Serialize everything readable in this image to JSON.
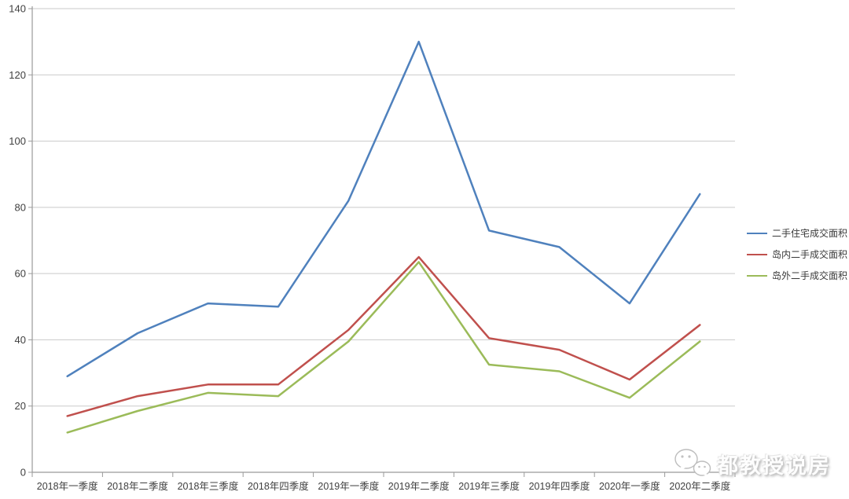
{
  "chart_data": {
    "type": "line",
    "title": "",
    "xlabel": "",
    "ylabel": "",
    "categories": [
      "2018年一季度",
      "2018年二季度",
      "2018年三季度",
      "2018年四季度",
      "2019年一季度",
      "2019年二季度",
      "2019年三季度",
      "2019年四季度",
      "2020年一季度",
      "2020年二季度"
    ],
    "series": [
      {
        "name": "二手住宅成交面积",
        "color": "#4F81BD",
        "values": [
          29,
          42,
          51,
          50,
          82,
          130,
          73,
          68,
          51,
          84
        ]
      },
      {
        "name": "岛内二手成交面积",
        "color": "#C0504D",
        "values": [
          17,
          23,
          26.5,
          26.5,
          43,
          65,
          40.5,
          37,
          28,
          44.5
        ]
      },
      {
        "name": "岛外二手成交面积",
        "color": "#9BBB59",
        "values": [
          12,
          18.5,
          24,
          23,
          39.5,
          63.5,
          32.5,
          30.5,
          22.5,
          39.5
        ]
      }
    ],
    "yticks": [
      0,
      20,
      40,
      60,
      80,
      100,
      120,
      140
    ],
    "ylim": [
      0,
      140
    ],
    "grid": true,
    "legend_position": "right"
  },
  "style_colors": {
    "gridline": "#C9C9C9",
    "axis": "#9A9A9A",
    "tick_label": "#404040",
    "background": "#FFFFFF"
  },
  "watermark": {
    "text": "都教授说房",
    "icon": "chat-bubbles-icon"
  }
}
